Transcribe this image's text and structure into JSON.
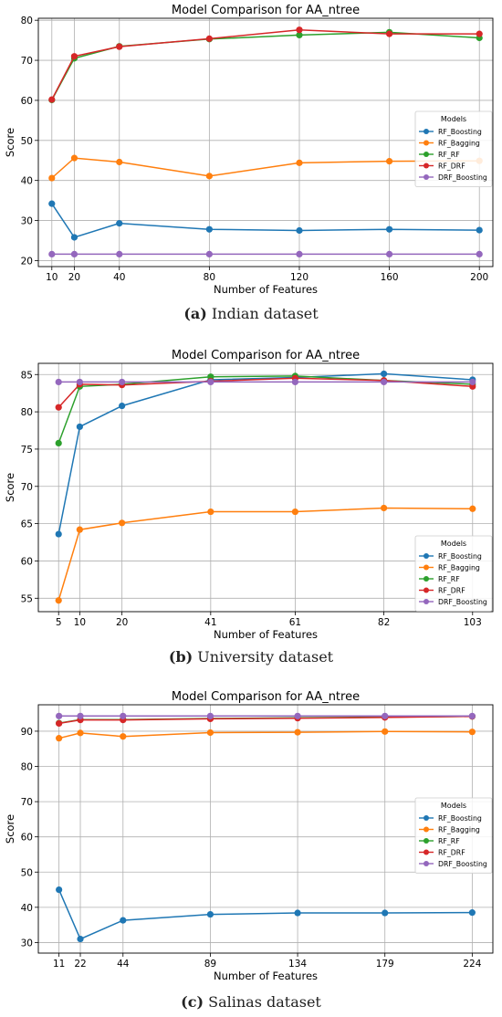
{
  "captions": [
    {
      "letter": "(a)",
      "text": " Indian dataset"
    },
    {
      "letter": "(b)",
      "text": " University dataset"
    },
    {
      "letter": "(c)",
      "text": " Salinas dataset"
    }
  ],
  "colors": {
    "RF_Boosting": "#1f77b4",
    "RF_Bagging": "#ff7f0e",
    "RF_RF": "#2ca02c",
    "RF_DRF": "#d62728",
    "DRF_Boosting": "#9467bd"
  },
  "chart_data": [
    {
      "type": "line",
      "title": "Model Comparison for AA_ntree",
      "xlabel": "Number of Features",
      "ylabel": "Score",
      "x": [
        10,
        20,
        40,
        80,
        120,
        160,
        200
      ],
      "xlim": [
        4,
        206
      ],
      "ylim": [
        18.5,
        80.5
      ],
      "yticks": [
        20,
        30,
        40,
        50,
        60,
        70,
        80
      ],
      "grid": true,
      "legend_title": "Models",
      "legend_position": "center-right",
      "series": [
        {
          "name": "RF_Boosting",
          "values": [
            34.2,
            25.8,
            29.3,
            27.8,
            27.5,
            27.8,
            27.6
          ]
        },
        {
          "name": "RF_Bagging",
          "values": [
            40.6,
            45.6,
            44.6,
            41.1,
            44.4,
            44.8,
            44.9
          ]
        },
        {
          "name": "RF_RF",
          "values": [
            60.1,
            70.5,
            73.5,
            75.3,
            76.3,
            77.0,
            75.6
          ]
        },
        {
          "name": "RF_DRF",
          "values": [
            60.2,
            71.0,
            73.4,
            75.4,
            77.6,
            76.6,
            76.6
          ]
        },
        {
          "name": "DRF_Boosting",
          "values": [
            21.6,
            21.6,
            21.6,
            21.6,
            21.6,
            21.6,
            21.6
          ]
        }
      ]
    },
    {
      "type": "line",
      "title": "Model Comparison for AA_ntree",
      "xlabel": "Number of Features",
      "ylabel": "Score",
      "x": [
        5,
        10,
        20,
        41,
        61,
        82,
        103
      ],
      "xlim": [
        0.2,
        107.8
      ],
      "ylim": [
        53.2,
        86.5
      ],
      "yticks": [
        55,
        60,
        65,
        70,
        75,
        80,
        85
      ],
      "grid": true,
      "legend_title": "Models",
      "legend_position": "lower-right",
      "series": [
        {
          "name": "RF_Boosting",
          "values": [
            63.6,
            78.0,
            80.8,
            84.3,
            84.6,
            85.1,
            84.3
          ]
        },
        {
          "name": "RF_Bagging",
          "values": [
            54.7,
            64.2,
            65.1,
            66.6,
            66.6,
            67.1,
            67.0
          ]
        },
        {
          "name": "RF_RF",
          "values": [
            75.8,
            83.4,
            83.7,
            84.7,
            84.8,
            84.2,
            83.7
          ]
        },
        {
          "name": "RF_DRF",
          "values": [
            80.6,
            83.7,
            83.6,
            84.1,
            84.5,
            84.2,
            83.4
          ]
        },
        {
          "name": "DRF_Boosting",
          "values": [
            84.0,
            84.0,
            84.0,
            84.0,
            84.0,
            84.0,
            84.0
          ]
        }
      ]
    },
    {
      "type": "line",
      "title": "Model Comparison for AA_ntree",
      "xlabel": "Number of Features",
      "ylabel": "Score",
      "x": [
        11,
        22,
        44,
        89,
        134,
        179,
        224
      ],
      "xlim": [
        0.35,
        234.65
      ],
      "ylim": [
        27.0,
        97.5
      ],
      "yticks": [
        30,
        40,
        50,
        60,
        70,
        80,
        90
      ],
      "grid": true,
      "legend_title": "Models",
      "legend_position": "center-right",
      "series": [
        {
          "name": "RF_Boosting",
          "values": [
            45.0,
            31.0,
            36.3,
            38.0,
            38.4,
            38.4,
            38.5
          ]
        },
        {
          "name": "RF_Bagging",
          "values": [
            88.0,
            89.5,
            88.5,
            89.6,
            89.7,
            89.9,
            89.8
          ]
        },
        {
          "name": "RF_RF",
          "values": [
            92.3,
            93.3,
            93.3,
            93.6,
            93.8,
            94.0,
            94.2
          ]
        },
        {
          "name": "RF_DRF",
          "values": [
            92.2,
            93.2,
            93.2,
            93.5,
            93.7,
            93.9,
            94.2
          ]
        },
        {
          "name": "DRF_Boosting",
          "values": [
            94.3,
            94.3,
            94.3,
            94.3,
            94.3,
            94.3,
            94.3
          ]
        }
      ]
    }
  ]
}
